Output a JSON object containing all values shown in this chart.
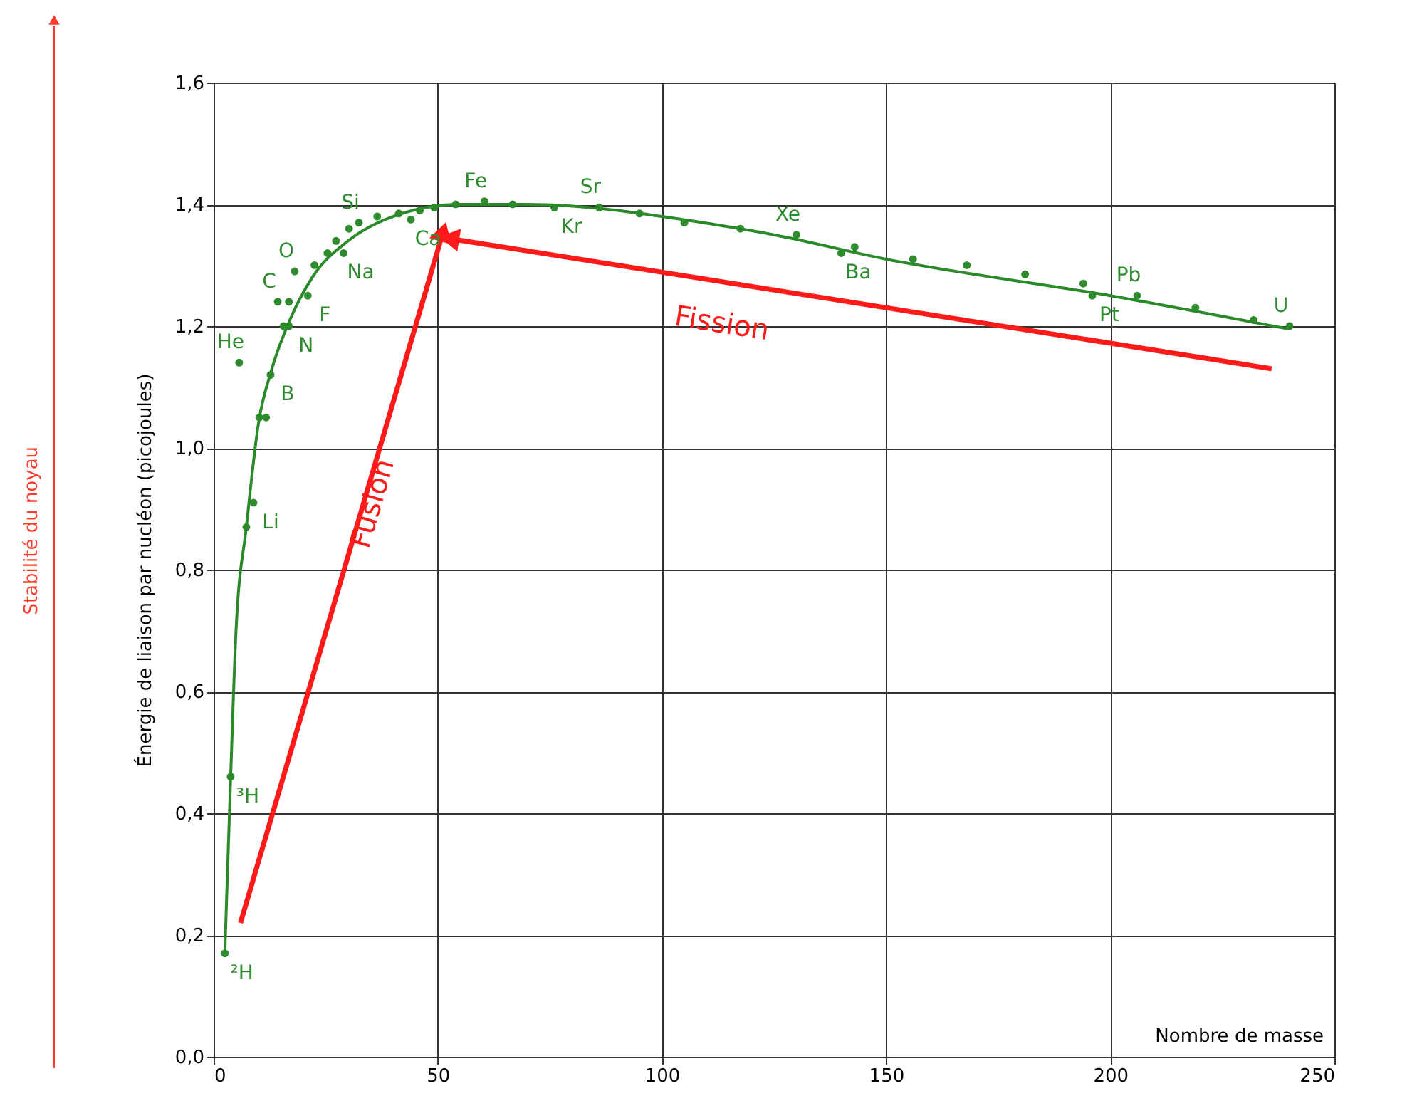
{
  "chart_data": {
    "type": "scatter",
    "xlabel": "Nombre de masse",
    "ylabel": "Énergie de liaison par nucléon (picojoules)",
    "xlim": [
      0,
      250
    ],
    "xticks": [
      0,
      50,
      100,
      150,
      200,
      250
    ],
    "ylim": [
      0,
      1.6
    ],
    "yticks": [
      {
        "value": 0,
        "label": "0,0"
      },
      {
        "value": 0.2,
        "label": "0,2"
      },
      {
        "value": 0.4,
        "label": "0,4"
      },
      {
        "value": 0.6,
        "label": "0,6"
      },
      {
        "value": 0.8,
        "label": "0,8"
      },
      {
        "value": 1.0,
        "label": "1,0"
      },
      {
        "value": 1.2,
        "label": "1,2"
      },
      {
        "value": 1.4,
        "label": "1,4"
      },
      {
        "value": 1.6,
        "label": "1,6"
      }
    ],
    "grid": true,
    "series": [
      {
        "color": "#2e8b2e",
        "marker": "circle",
        "x": [
          2.5,
          3.8,
          5.7,
          7.3,
          8.9,
          10.2,
          11.7,
          12.7,
          14.3,
          15.6,
          16.8,
          16.8,
          18.1,
          21,
          22.5,
          25.4,
          27.3,
          29,
          30.2,
          32.4,
          36.5,
          41.3,
          44,
          46,
          49.2,
          54,
          60.4,
          66.7,
          76,
          86,
          95,
          105,
          117.5,
          130,
          140,
          143,
          156,
          168,
          181,
          194,
          196,
          206,
          219,
          232,
          240
        ],
        "values": [
          0.17,
          0.46,
          1.14,
          0.87,
          0.91,
          1.05,
          1.05,
          1.12,
          1.24,
          1.2,
          1.2,
          1.24,
          1.29,
          1.25,
          1.3,
          1.32,
          1.34,
          1.32,
          1.36,
          1.37,
          1.38,
          1.385,
          1.375,
          1.39,
          1.395,
          1.4,
          1.405,
          1.4,
          1.395,
          1.395,
          1.385,
          1.37,
          1.36,
          1.35,
          1.32,
          1.33,
          1.31,
          1.3,
          1.285,
          1.27,
          1.25,
          1.25,
          1.23,
          1.21,
          1.2
        ]
      },
      {
        "type": "line",
        "color": "#2a8a2a",
        "x": [
          2.5,
          3.8,
          5,
          7.3,
          10,
          13,
          17,
          22,
          30,
          40,
          55,
          70,
          90,
          100,
          125,
          150,
          200,
          240
        ],
        "values": [
          0.17,
          0.46,
          0.7,
          0.87,
          1.04,
          1.13,
          1.21,
          1.28,
          1.34,
          1.38,
          1.4,
          1.4,
          1.39,
          1.38,
          1.35,
          1.31,
          1.25,
          1.195
        ]
      },
      {
        "type": "line",
        "color": "#ff1a1a",
        "marker": "triangle",
        "x": [
          6,
          51
        ],
        "values": [
          0.22,
          1.35
        ]
      },
      {
        "type": "line",
        "color": "#ff1a1a",
        "marker": "triangle",
        "x": [
          236,
          53.3
        ],
        "values": [
          1.13,
          1.343
        ]
      }
    ],
    "annotations": [
      {
        "text": "Fe",
        "x": 60.4,
        "y": 1.405
      },
      {
        "text": "Si",
        "x": 32.4,
        "y": 1.37
      },
      {
        "text": "Ca",
        "x": 44,
        "y": 1.375
      },
      {
        "text": "Na",
        "x": 29,
        "y": 1.32
      },
      {
        "text": "O",
        "x": 18.1,
        "y": 1.29
      },
      {
        "text": "C",
        "x": 14.3,
        "y": 1.24
      },
      {
        "text": "F",
        "x": 21,
        "y": 1.25
      },
      {
        "text": "He",
        "x": 5.7,
        "y": 1.14
      },
      {
        "text": "N",
        "x": 16.8,
        "y": 1.2
      },
      {
        "text": "B",
        "x": 12.7,
        "y": 1.12
      },
      {
        "text": "Li",
        "x": 8.9,
        "y": 0.91
      },
      {
        "text": "³H",
        "x": 3.8,
        "y": 0.46
      },
      {
        "text": "²H",
        "x": 2.5,
        "y": 0.17
      },
      {
        "text": "Sr",
        "x": 86,
        "y": 1.395
      },
      {
        "text": "Kr",
        "x": 76,
        "y": 1.395
      },
      {
        "text": "Xe",
        "x": 130,
        "y": 1.35
      },
      {
        "text": "Ba",
        "x": 140,
        "y": 1.32
      },
      {
        "text": "Pb",
        "x": 206,
        "y": 1.25
      },
      {
        "text": "Pt",
        "x": 196,
        "y": 1.25
      },
      {
        "text": "U",
        "x": 240,
        "y": 1.2
      },
      {
        "text": "Fusion",
        "x": 31.1,
        "y": 0.857
      },
      {
        "text": "Fission",
        "x": 116.3,
        "y": 1.27
      },
      "Stabilité du noyau"
    ]
  }
}
